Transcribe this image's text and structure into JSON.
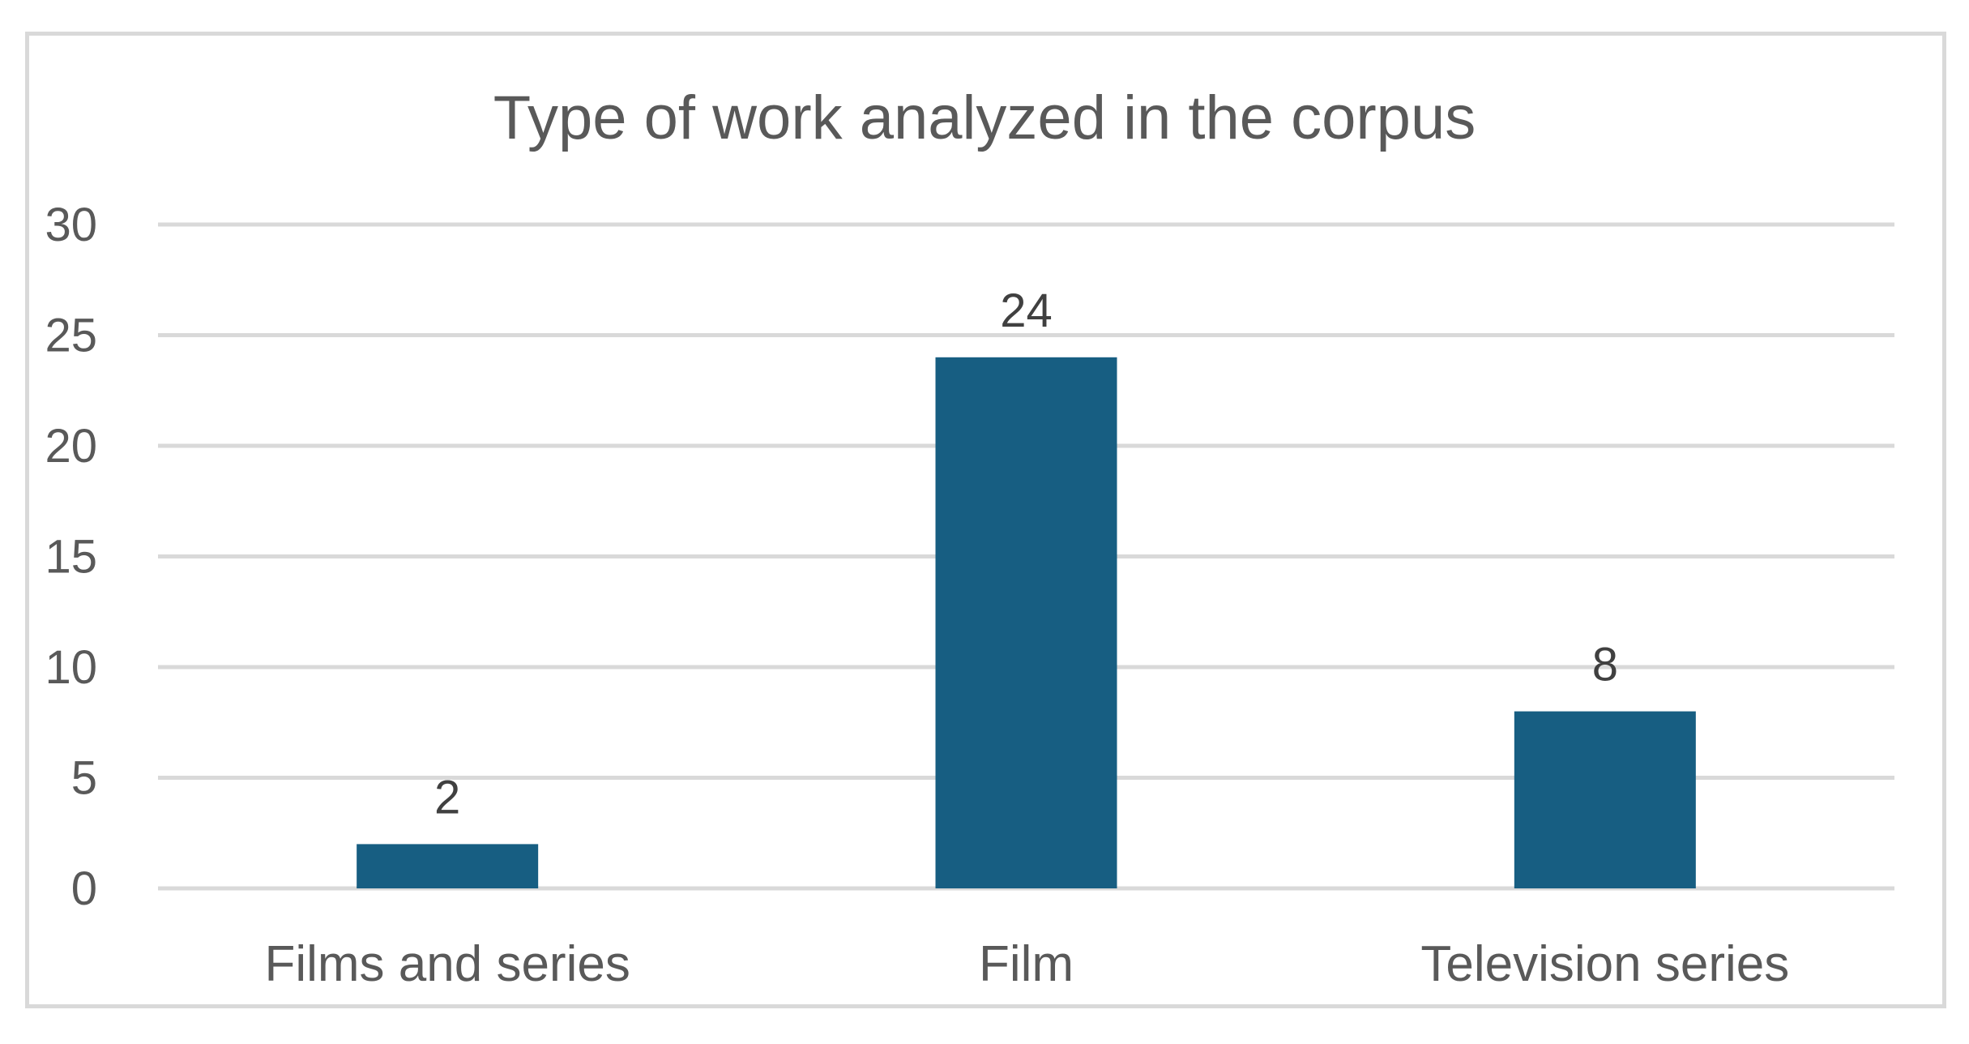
{
  "chart_data": {
    "type": "bar",
    "title": "Type of work analyzed in the corpus",
    "categories": [
      "Films and series",
      "Film",
      "Television series"
    ],
    "values": [
      2,
      24,
      8
    ],
    "value_labels": [
      "2",
      "24",
      "8"
    ],
    "xlabel": "",
    "ylabel": "",
    "ylim": [
      0,
      30
    ],
    "yticks": [
      0,
      5,
      10,
      15,
      20,
      25,
      30
    ],
    "ytick_labels": [
      "0",
      "5",
      "10",
      "15",
      "20",
      "25",
      "30"
    ],
    "grid": true,
    "legend": "none",
    "colors": {
      "bar": "#175e82",
      "gridline": "#d9d9d9",
      "text": "#595959",
      "data_label": "#404040",
      "frame": "#d9d9d9"
    }
  }
}
